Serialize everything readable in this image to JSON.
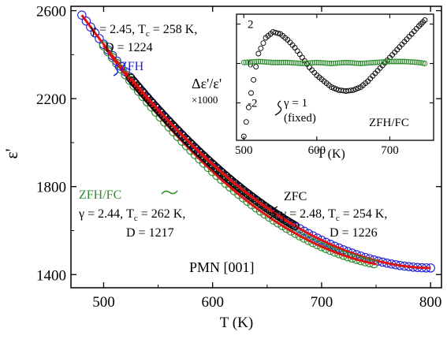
{
  "chart_data": [
    {
      "type": "scatter",
      "xlabel": "T (K)",
      "ylabel": "ε'",
      "xlim": [
        470,
        810
      ],
      "ylim": [
        1340,
        2620
      ],
      "xticks": [
        500,
        600,
        700,
        800
      ],
      "yticks": [
        1400,
        1800,
        2200,
        2600
      ],
      "sample_label": "PMN [001]",
      "series": [
        {
          "name": "ZFH",
          "color": "#1f1fd0",
          "marker": "open-circle",
          "fit": {
            "gamma": 2.45,
            "Tc": 258,
            "D": 1224,
            "t_min": 480,
            "t_max": 800
          },
          "fit_color": "#e01010"
        },
        {
          "name": "ZFH/FC",
          "color": "#2e8b2e",
          "marker": "open-circle",
          "fit": {
            "gamma": 2.44,
            "Tc": 262,
            "D": 1217,
            "t_min": 500,
            "t_max": 750
          },
          "fit_color": "#e01010"
        },
        {
          "name": "ZFC",
          "color": "#000000",
          "marker": "open-circle",
          "fit": {
            "gamma": 2.48,
            "Tc": 254,
            "D": 1226,
            "t_min": 525,
            "t_max": 675
          },
          "fit_color": "#e01010"
        }
      ]
    },
    {
      "type": "scatter",
      "xlabel": "T (K)",
      "ylabel": "Δε'/ε'",
      "ylabel_sub": "×1000",
      "xlim": [
        490,
        760
      ],
      "ylim": [
        -3.9,
        2.5
      ],
      "xticks": [
        500,
        600,
        700
      ],
      "yticks": [
        -2,
        0,
        2
      ],
      "label": "ZFH/FC",
      "series": [
        {
          "name": "γ = 1 (fixed)",
          "color": "#000000",
          "marker": "open-circle",
          "x": [
            500,
            510,
            520,
            530,
            540,
            550,
            560,
            570,
            580,
            590,
            600,
            610,
            620,
            630,
            640,
            650,
            660,
            670,
            680,
            690,
            700,
            710,
            720,
            730,
            740,
            748
          ],
          "y": [
            -3.7,
            -1.5,
            0.5,
            1.3,
            1.6,
            1.5,
            1.2,
            0.8,
            0.3,
            -0.2,
            -0.6,
            -0.9,
            -1.2,
            -1.35,
            -1.4,
            -1.35,
            -1.2,
            -0.9,
            -0.5,
            -0.1,
            0.3,
            0.7,
            1.1,
            1.5,
            1.9,
            2.2
          ]
        },
        {
          "name": "ZFH/FC",
          "color": "#2e8b2e",
          "marker": "open-circle",
          "x": [
            500,
            520,
            540,
            560,
            580,
            600,
            620,
            640,
            660,
            680,
            700,
            720,
            740,
            748
          ],
          "y": [
            0.05,
            0.1,
            0.05,
            0.05,
            0.0,
            0.05,
            0.0,
            0.05,
            0.0,
            0.05,
            0.1,
            0.1,
            0.05,
            0.0
          ]
        }
      ]
    }
  ],
  "annotations": {
    "zfh_gamma": "γ = 2.45, T",
    "zfh_tc": " = 258 K,",
    "zfh_d": "D = 1224",
    "zfh_label": "ZFH",
    "zfhfc_label": "ZFH/FC",
    "zfhfc_gamma": "γ = 2.44, T",
    "zfhfc_tc": " = 262 K,",
    "zfhfc_d": "D = 1217",
    "zfc_label": "ZFC",
    "zfc_gamma": "γ = 2.48, T",
    "zfc_tc": " = 254 K,",
    "zfc_d": "D = 1226",
    "tc_sub": "c",
    "inset_gamma": "γ = 1",
    "inset_fixed": "(fixed)"
  }
}
